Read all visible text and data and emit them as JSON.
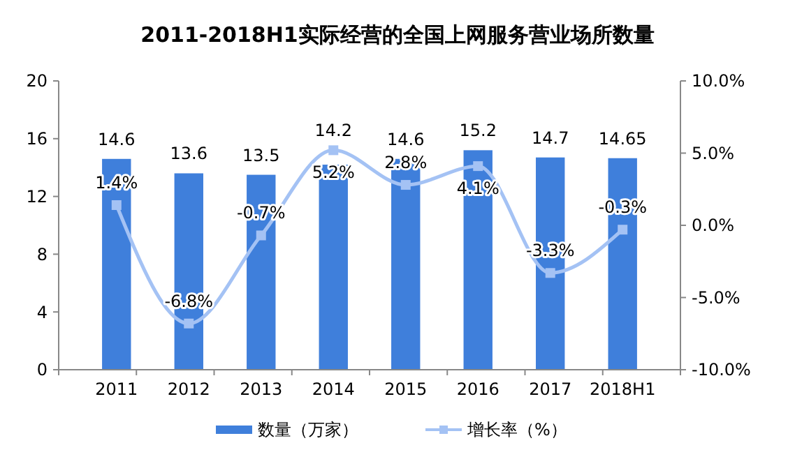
{
  "chart_data": {
    "type": "bar",
    "title": "2011-2018H1实际经营的全国上网服务营业场所数量",
    "categories": [
      "2011",
      "2012",
      "2013",
      "2014",
      "2015",
      "2016",
      "2017",
      "2018H1"
    ],
    "series": [
      {
        "name": "数量（万家）",
        "color": "#3f7fdb",
        "values": [
          14.6,
          13.6,
          13.5,
          14.2,
          14.6,
          15.2,
          14.7,
          14.65
        ],
        "value_labels": [
          "14.6",
          "13.6",
          "13.5",
          "14.2",
          "14.6",
          "15.2",
          "14.7",
          "14.65"
        ]
      },
      {
        "name": "增长率（%）",
        "type": "line",
        "axis": "y2",
        "color": "#a4c2f4",
        "marker": "square",
        "values": [
          1.4,
          -6.8,
          -0.7,
          5.2,
          2.8,
          4.1,
          -3.3,
          -0.3
        ],
        "value_labels": [
          "1.4%",
          "-6.8%",
          "-0.7%",
          "5.2%",
          "2.8%",
          "4.1%",
          "-3.3%",
          "-0.3%"
        ]
      }
    ],
    "ylim": [
      0,
      20
    ],
    "yticks": [
      0,
      4,
      8,
      12,
      16,
      20
    ],
    "y2lim": [
      -10,
      10
    ],
    "y2ticks": [
      {
        "value": -10,
        "label": "-10.0%"
      },
      {
        "value": -5,
        "label": "-5.0%"
      },
      {
        "value": 0,
        "label": "0.0%"
      },
      {
        "value": 5,
        "label": "5.0%"
      },
      {
        "value": 10,
        "label": "10.0%"
      }
    ],
    "grid": false,
    "legend": "bottom"
  }
}
